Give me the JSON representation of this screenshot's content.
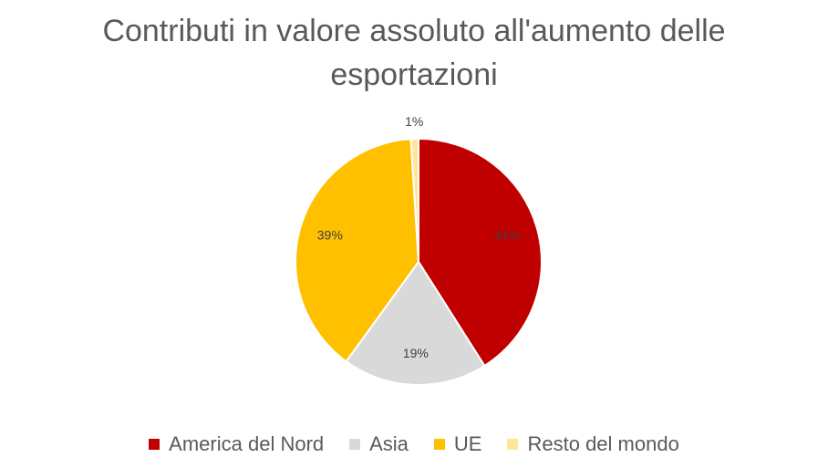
{
  "chart_data": {
    "type": "pie",
    "title": "Contributi in valore assoluto all'aumento delle esportazioni",
    "categories": [
      "America del Nord",
      "Asia",
      "UE",
      "Resto del mondo"
    ],
    "values": [
      41,
      19,
      39,
      1
    ],
    "value_labels": [
      "41%",
      "19%",
      "39%",
      "1%"
    ],
    "colors": [
      "#c00000",
      "#d9d9d9",
      "#ffc000",
      "#ffe699"
    ],
    "legend": "bottom"
  }
}
